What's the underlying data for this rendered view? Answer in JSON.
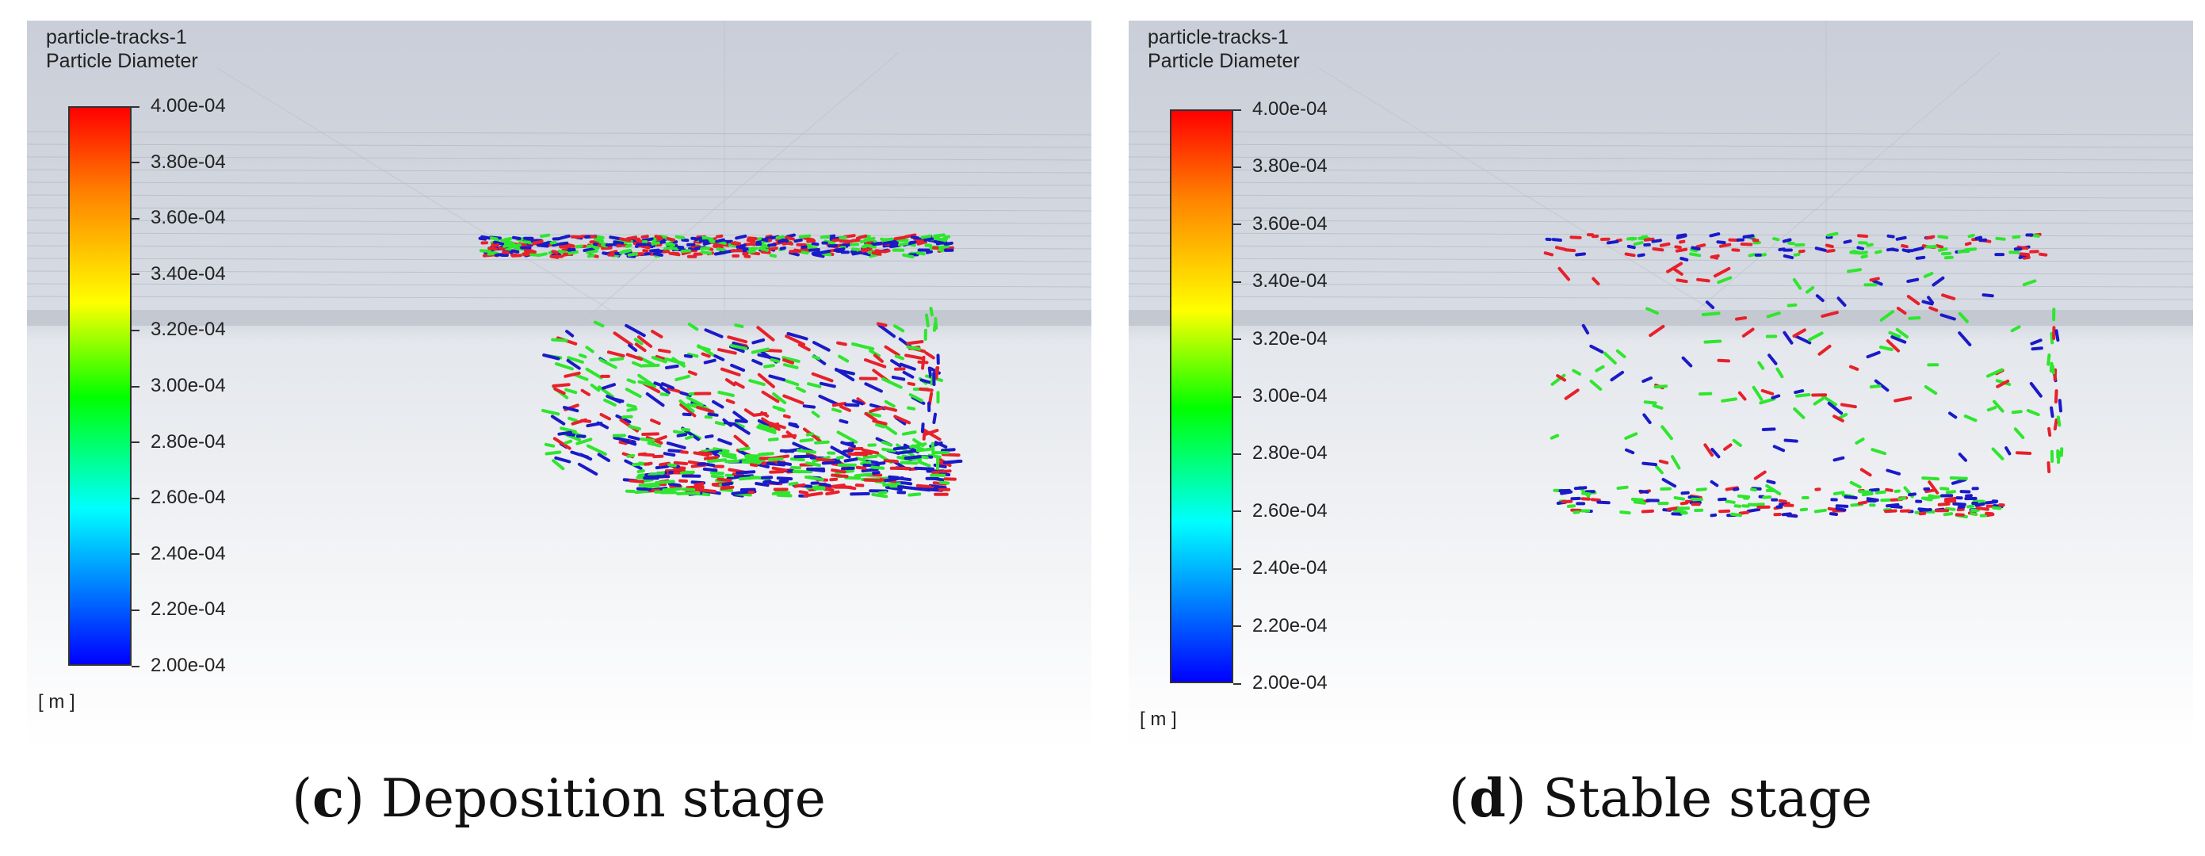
{
  "panels": [
    {
      "id": "c",
      "header_line1": "particle-tracks-1",
      "header_line2": "Particle Diameter",
      "colorbar_labels": [
        "4.00e-04",
        "3.80e-04",
        "3.60e-04",
        "3.40e-04",
        "3.20e-04",
        "3.00e-04",
        "2.80e-04",
        "2.60e-04",
        "2.40e-04",
        "2.20e-04",
        "2.00e-04"
      ],
      "unit": "[ m ]",
      "caption_letter": "c",
      "caption_text": "Deposition stage"
    },
    {
      "id": "d",
      "header_line1": "particle-tracks-1",
      "header_line2": "Particle Diameter",
      "colorbar_labels": [
        "4.00e-04",
        "3.80e-04",
        "3.60e-04",
        "3.40e-04",
        "3.20e-04",
        "3.00e-04",
        "2.80e-04",
        "2.60e-04",
        "2.40e-04",
        "2.20e-04",
        "2.00e-04"
      ],
      "unit": "[ m ]",
      "caption_letter": "d",
      "caption_text": "Stable stage"
    }
  ],
  "colors": {
    "particle_red": "#e8202a",
    "particle_green": "#2ee62e",
    "particle_blue": "#1a1ac8",
    "background_top": "#c9ced8",
    "background_bottom": "#ffffff"
  }
}
